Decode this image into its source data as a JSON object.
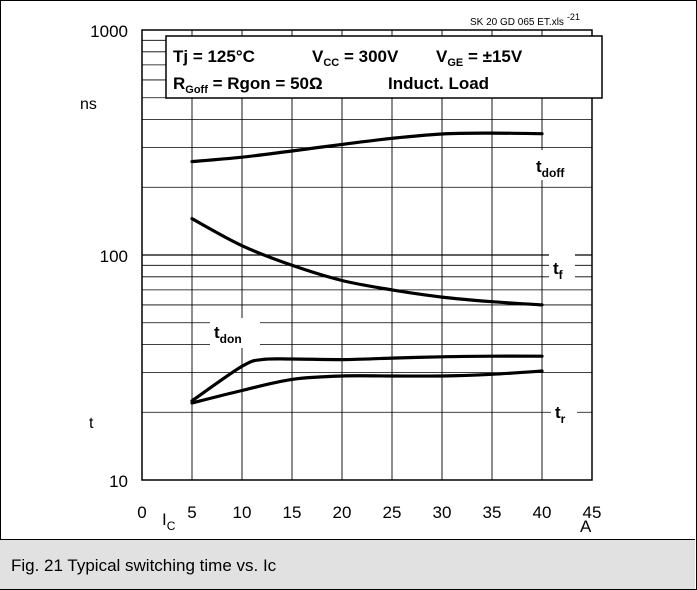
{
  "caption": "Fig. 21 Typical switching time vs. Ic",
  "chart_data": {
    "type": "line",
    "source_note": "SK 20 GD 065 ET.xls",
    "source_note_sup": "-21",
    "conditions": {
      "line1": {
        "tj": "Tj = 125°C",
        "vcc_main": "V",
        "vcc_sub": "CC",
        "vcc_rest": " = 300V",
        "vge_main": "V",
        "vge_sub": "GE",
        "vge_rest": " = ±15V"
      },
      "line2": {
        "r_main": "R",
        "r_sub": "Goff",
        "r_rest": " = Rgon = 50Ω",
        "load": "Induct. Load"
      }
    },
    "y_scale": "log",
    "ylim": [
      10,
      1000
    ],
    "xlim": [
      0,
      45
    ],
    "y_tick_labels": [
      "1000",
      "100",
      "10"
    ],
    "y_unit": "ns",
    "y_symbol": "t",
    "x_ticks": [
      0,
      5,
      10,
      15,
      20,
      25,
      30,
      35,
      40,
      45
    ],
    "x_tick_labels": [
      "0",
      "5",
      "10",
      "15",
      "20",
      "25",
      "30",
      "35",
      "40",
      "45"
    ],
    "x_symbol_main": "I",
    "x_symbol_sub": "C",
    "x_unit": "A",
    "grid": true,
    "series": [
      {
        "name": "doff",
        "label_main": "t",
        "label_sub": "doff",
        "x": [
          5,
          10,
          15,
          20,
          25,
          30,
          35,
          40
        ],
        "y": [
          260,
          272,
          290,
          310,
          330,
          345,
          348,
          346
        ]
      },
      {
        "name": "f",
        "label_main": "t",
        "label_sub": "f",
        "x": [
          5,
          10,
          15,
          20,
          25,
          30,
          35,
          40
        ],
        "y": [
          145,
          110,
          90,
          77,
          70,
          65,
          62,
          60
        ]
      },
      {
        "name": "don",
        "label_main": "t",
        "label_sub": "don",
        "x": [
          5,
          10,
          12,
          15,
          20,
          25,
          30,
          35,
          40
        ],
        "y": [
          22.5,
          32,
          34.3,
          34.5,
          34.3,
          34.8,
          35.3,
          35.5,
          35.5
        ]
      },
      {
        "name": "r",
        "label_main": "t",
        "label_sub": "r",
        "x": [
          5,
          10,
          15,
          20,
          25,
          30,
          35,
          40
        ],
        "y": [
          22,
          25,
          28,
          29,
          29,
          29,
          29.5,
          30.5
        ]
      }
    ]
  }
}
